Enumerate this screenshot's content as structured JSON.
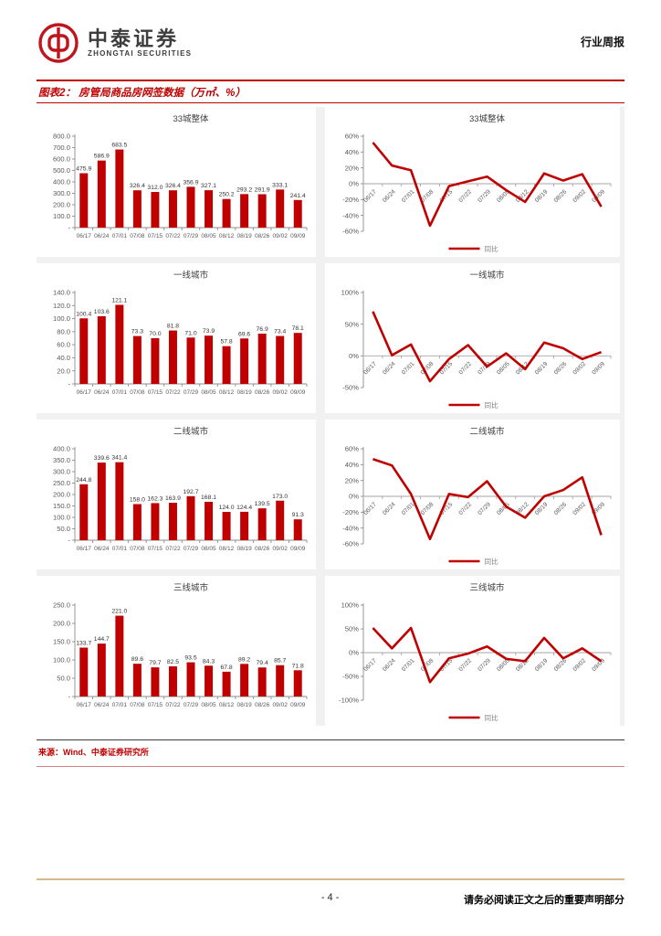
{
  "header": {
    "brand_cn": "中泰证券",
    "brand_en": "ZHONGTAI SECURITIES",
    "report_type": "行业周报"
  },
  "figure": {
    "title": "图表2： 房管局商品房网签数据（万㎡、%）",
    "source": "来源：Wind、中泰证券研究所"
  },
  "footer": {
    "page_number": "- 4 -",
    "disclaimer": "请务必阅读正文之后的重要声明部分"
  },
  "colors": {
    "accent_red": "#c00000",
    "axis_gray": "#8c8c8c",
    "label_gray": "#595959",
    "gutter_gray": "#f1f1f1",
    "footer_tan": "#d8b88e"
  },
  "legend_label": "同比",
  "chart_data": [
    {
      "type": "bar",
      "title": "33城整体",
      "categories": [
        "06/17",
        "06/24",
        "07/01",
        "07/08",
        "07/15",
        "07/22",
        "07/29",
        "08/05",
        "08/12",
        "08/19",
        "08/26",
        "09/02",
        "09/09"
      ],
      "values": [
        475.9,
        586.9,
        683.5,
        326.4,
        312.0,
        326.4,
        356.9,
        327.1,
        250.2,
        293.2,
        291.9,
        333.1,
        241.4
      ],
      "ylim": [
        0,
        800
      ],
      "ytick": 100,
      "yfmt": "num"
    },
    {
      "type": "line",
      "title": "33城整体",
      "legend": "同比",
      "categories": [
        "06/17",
        "06/24",
        "07/01",
        "07/08",
        "07/15",
        "07/22",
        "07/29",
        "08/05",
        "08/12",
        "08/19",
        "08/26",
        "09/02",
        "09/09"
      ],
      "values": [
        52,
        23,
        17,
        -53,
        -3,
        3,
        9,
        -8,
        -23,
        13,
        4,
        12,
        -29
      ],
      "ylim": [
        -60,
        60
      ],
      "ytick": 20,
      "yfmt": "%"
    },
    {
      "type": "bar",
      "title": "一线城市",
      "categories": [
        "06/17",
        "06/24",
        "07/01",
        "07/08",
        "07/15",
        "07/22",
        "07/29",
        "08/05",
        "08/12",
        "08/19",
        "08/26",
        "09/02",
        "09/09"
      ],
      "values": [
        100.4,
        103.6,
        121.1,
        73.3,
        70.0,
        81.8,
        71.0,
        73.9,
        57.8,
        69.6,
        76.9,
        73.4,
        78.1
      ],
      "ylim": [
        0,
        140
      ],
      "ytick": 20,
      "yfmt": "num"
    },
    {
      "type": "line",
      "title": "一线城市",
      "legend": "同比",
      "categories": [
        "06/17",
        "06/24",
        "07/01",
        "07/08",
        "07/15",
        "07/22",
        "07/29",
        "08/05",
        "08/12",
        "08/19",
        "08/26",
        "09/02",
        "09/09"
      ],
      "values": [
        70,
        1,
        18,
        -40,
        -5,
        17,
        -17,
        4,
        -21,
        21,
        12,
        -5,
        6
      ],
      "ylim": [
        -50,
        100
      ],
      "ytick": 50,
      "yfmt": "%"
    },
    {
      "type": "bar",
      "title": "二线城市",
      "categories": [
        "06/17",
        "06/24",
        "07/01",
        "07/08",
        "07/15",
        "07/22",
        "07/29",
        "08/05",
        "08/12",
        "08/19",
        "08/26",
        "09/02",
        "09/09"
      ],
      "values": [
        244.8,
        339.6,
        341.4,
        158.0,
        162.3,
        163.9,
        192.7,
        168.1,
        124.0,
        124.4,
        139.5,
        173.0,
        91.3
      ],
      "ylim": [
        0,
        400
      ],
      "ytick": 50,
      "yfmt": "num"
    },
    {
      "type": "line",
      "title": "二线城市",
      "legend": "同比",
      "categories": [
        "06/17",
        "06/24",
        "07/01",
        "07/08",
        "07/15",
        "07/22",
        "07/29",
        "08/05",
        "08/12",
        "08/19",
        "08/26",
        "09/02",
        "09/09"
      ],
      "values": [
        47,
        39,
        3,
        -54,
        3,
        -1,
        19,
        -13,
        -27,
        0,
        8,
        24,
        -49
      ],
      "ylim": [
        -60,
        60
      ],
      "ytick": 20,
      "yfmt": "%"
    },
    {
      "type": "bar",
      "title": "三线城市",
      "categories": [
        "06/17",
        "06/24",
        "07/01",
        "07/08",
        "07/15",
        "07/22",
        "07/29",
        "08/05",
        "08/12",
        "08/19",
        "08/26",
        "09/02",
        "09/09"
      ],
      "values": [
        133.7,
        144.7,
        221.0,
        89.6,
        79.7,
        82.5,
        93.5,
        84.3,
        67.8,
        89.2,
        79.4,
        85.7,
        71.8
      ],
      "ylim": [
        0,
        250
      ],
      "ytick": 50,
      "yfmt": "num"
    },
    {
      "type": "line",
      "title": "三线城市",
      "legend": "同比",
      "categories": [
        "06/17",
        "06/24",
        "07/01",
        "07/08",
        "07/15",
        "07/22",
        "07/29",
        "08/05",
        "08/12",
        "08/19",
        "08/26",
        "09/02",
        "09/09"
      ],
      "values": [
        52,
        9,
        52,
        -62,
        -12,
        -2,
        13,
        -13,
        -18,
        31,
        -12,
        9,
        -18
      ],
      "ylim": [
        -100,
        100
      ],
      "ytick": 50,
      "yfmt": "%"
    }
  ]
}
